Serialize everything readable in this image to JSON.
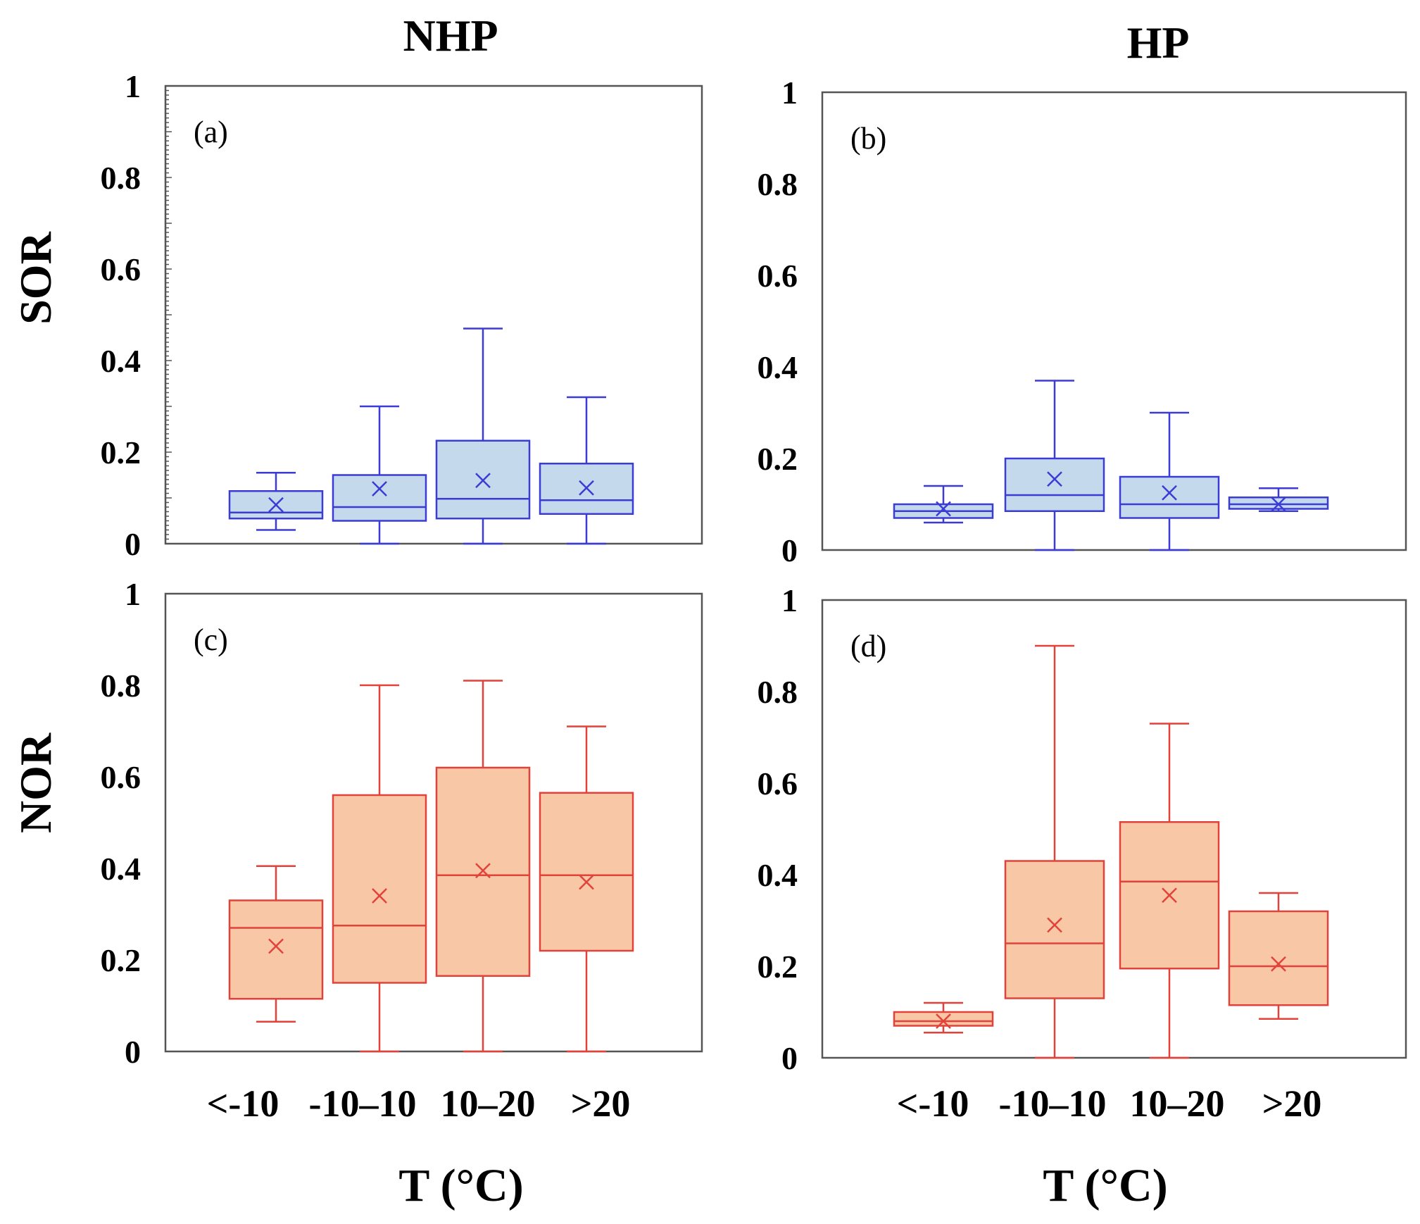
{
  "figure": {
    "column_titles": [
      "NHP",
      "HP"
    ],
    "row_labels": [
      "SOR",
      "NOR"
    ],
    "x_ticks": [
      "<-10",
      "-10–10",
      "10–20",
      ">20"
    ],
    "x_label": "T (°C)",
    "y_ticks": [
      "0",
      "0.2",
      "0.4",
      "0.6",
      "0.8",
      "1"
    ]
  },
  "colors": {
    "blue_stroke": "#3b3bd6",
    "blue_fill": "#c5d9ec",
    "red_stroke": "#e2423a",
    "red_fill": "#f7c7a6"
  },
  "chart_data": [
    {
      "type": "box",
      "panel": "(a)",
      "column": "NHP",
      "ylabel": "SOR",
      "ylim": [
        0,
        1
      ],
      "categories": [
        "<-10",
        "-10–10",
        "10–20",
        ">20"
      ],
      "boxes": [
        {
          "min": 0.03,
          "q1": 0.055,
          "median": 0.068,
          "q3": 0.115,
          "max": 0.155,
          "mean": 0.085
        },
        {
          "min": 0.0,
          "q1": 0.05,
          "median": 0.08,
          "q3": 0.15,
          "max": 0.3,
          "mean": 0.12
        },
        {
          "min": 0.0,
          "q1": 0.055,
          "median": 0.098,
          "q3": 0.225,
          "max": 0.47,
          "mean": 0.138
        },
        {
          "min": 0.0,
          "q1": 0.065,
          "median": 0.095,
          "q3": 0.175,
          "max": 0.32,
          "mean": 0.122
        }
      ]
    },
    {
      "type": "box",
      "panel": "(b)",
      "column": "HP",
      "ylabel": "SOR",
      "ylim": [
        0,
        1
      ],
      "categories": [
        "<-10",
        "-10–10",
        "10–20",
        ">20"
      ],
      "boxes": [
        {
          "min": 0.06,
          "q1": 0.07,
          "median": 0.085,
          "q3": 0.1,
          "max": 0.14,
          "mean": 0.09
        },
        {
          "min": 0.0,
          "q1": 0.085,
          "median": 0.12,
          "q3": 0.2,
          "max": 0.37,
          "mean": 0.155
        },
        {
          "min": 0.0,
          "q1": 0.07,
          "median": 0.1,
          "q3": 0.16,
          "max": 0.3,
          "mean": 0.125
        },
        {
          "min": 0.085,
          "q1": 0.09,
          "median": 0.1,
          "q3": 0.115,
          "max": 0.135,
          "mean": 0.1
        }
      ]
    },
    {
      "type": "box",
      "panel": "(c)",
      "column": "NHP",
      "ylabel": "NOR",
      "ylim": [
        0,
        1
      ],
      "categories": [
        "<-10",
        "-10–10",
        "10–20",
        ">20"
      ],
      "boxes": [
        {
          "min": 0.065,
          "q1": 0.115,
          "median": 0.27,
          "q3": 0.33,
          "max": 0.405,
          "mean": 0.23
        },
        {
          "min": 0.0,
          "q1": 0.15,
          "median": 0.275,
          "q3": 0.56,
          "max": 0.8,
          "mean": 0.34
        },
        {
          "min": 0.0,
          "q1": 0.165,
          "median": 0.385,
          "q3": 0.62,
          "max": 0.81,
          "mean": 0.395
        },
        {
          "min": 0.0,
          "q1": 0.22,
          "median": 0.385,
          "q3": 0.565,
          "max": 0.71,
          "mean": 0.37
        }
      ]
    },
    {
      "type": "box",
      "panel": "(d)",
      "column": "HP",
      "ylabel": "NOR",
      "ylim": [
        0,
        1
      ],
      "categories": [
        "<-10",
        "-10–10",
        "10–20",
        ">20"
      ],
      "boxes": [
        {
          "min": 0.055,
          "q1": 0.07,
          "median": 0.08,
          "q3": 0.1,
          "max": 0.12,
          "mean": 0.08
        },
        {
          "min": 0.0,
          "q1": 0.13,
          "median": 0.25,
          "q3": 0.43,
          "max": 0.9,
          "mean": 0.29
        },
        {
          "min": 0.0,
          "q1": 0.195,
          "median": 0.385,
          "q3": 0.515,
          "max": 0.73,
          "mean": 0.355
        },
        {
          "min": 0.085,
          "q1": 0.115,
          "median": 0.2,
          "q3": 0.32,
          "max": 0.36,
          "mean": 0.205
        }
      ]
    }
  ]
}
